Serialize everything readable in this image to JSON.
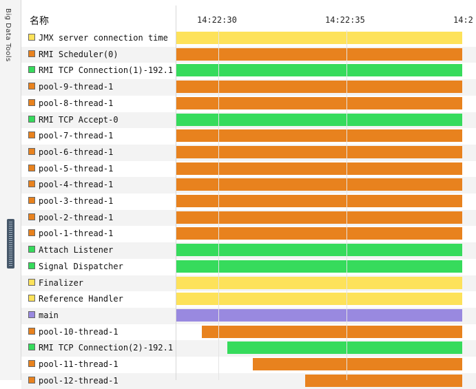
{
  "sidebar": {
    "title": "Big Data Tools"
  },
  "header": {
    "name_label": "名称",
    "ticks": [
      "14:22:30",
      "14:22:35",
      "14:2"
    ]
  },
  "colors": {
    "yellow": "#fde25a",
    "orange": "#e8821e",
    "green": "#36db5c",
    "purple": "#9989e0"
  },
  "threads": [
    {
      "name": "JMX server connection time",
      "color": "yellow",
      "start": 0.0,
      "end": 0.955
    },
    {
      "name": "RMI Scheduler(0)",
      "color": "orange",
      "start": 0.0,
      "end": 0.955
    },
    {
      "name": "RMI TCP Connection(1)-192.1",
      "color": "green",
      "start": 0.0,
      "end": 0.955
    },
    {
      "name": "pool-9-thread-1",
      "color": "orange",
      "start": 0.0,
      "end": 0.955
    },
    {
      "name": "pool-8-thread-1",
      "color": "orange",
      "start": 0.0,
      "end": 0.955
    },
    {
      "name": "RMI TCP Accept-0",
      "color": "green",
      "start": 0.0,
      "end": 0.955
    },
    {
      "name": "pool-7-thread-1",
      "color": "orange",
      "start": 0.0,
      "end": 0.955
    },
    {
      "name": "pool-6-thread-1",
      "color": "orange",
      "start": 0.0,
      "end": 0.955
    },
    {
      "name": "pool-5-thread-1",
      "color": "orange",
      "start": 0.0,
      "end": 0.955
    },
    {
      "name": "pool-4-thread-1",
      "color": "orange",
      "start": 0.0,
      "end": 0.955
    },
    {
      "name": "pool-3-thread-1",
      "color": "orange",
      "start": 0.0,
      "end": 0.955
    },
    {
      "name": "pool-2-thread-1",
      "color": "orange",
      "start": 0.0,
      "end": 0.955
    },
    {
      "name": "pool-1-thread-1",
      "color": "orange",
      "start": 0.0,
      "end": 0.955
    },
    {
      "name": "Attach Listener",
      "color": "green",
      "start": 0.0,
      "end": 0.955
    },
    {
      "name": "Signal Dispatcher",
      "color": "green",
      "start": 0.0,
      "end": 0.955
    },
    {
      "name": "Finalizer",
      "color": "yellow",
      "start": 0.0,
      "end": 0.955
    },
    {
      "name": "Reference Handler",
      "color": "yellow",
      "start": 0.0,
      "end": 0.955
    },
    {
      "name": "main",
      "color": "purple",
      "start": 0.0,
      "end": 0.955
    },
    {
      "name": "pool-10-thread-1",
      "color": "orange",
      "start": 0.085,
      "end": 0.955
    },
    {
      "name": "RMI TCP Connection(2)-192.1",
      "color": "green",
      "start": 0.17,
      "end": 0.955
    },
    {
      "name": "pool-11-thread-1",
      "color": "orange",
      "start": 0.255,
      "end": 0.955
    },
    {
      "name": "pool-12-thread-1",
      "color": "orange",
      "start": 0.43,
      "end": 0.955
    }
  ]
}
